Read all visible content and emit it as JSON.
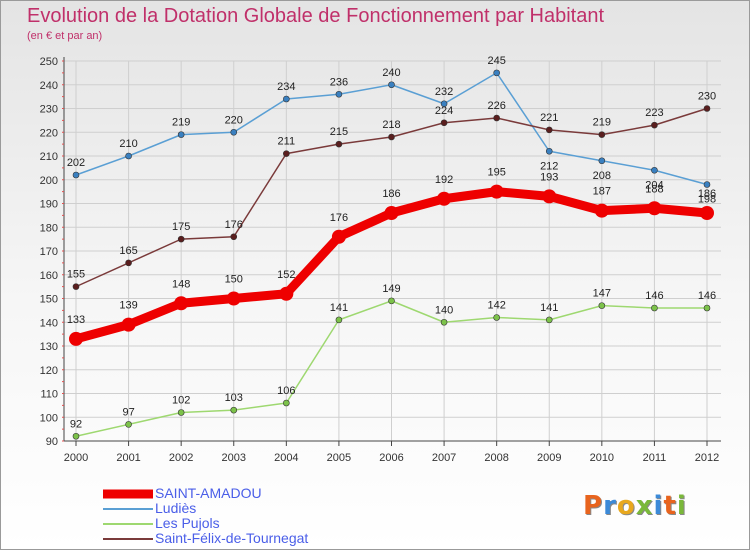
{
  "header": {
    "title": "Evolution de la Dotation Globale de Fonctionnement par Habitant",
    "subtitle": "(en € et par an)"
  },
  "chart_data": {
    "type": "line",
    "title": "Evolution de la Dotation Globale de Fonctionnement par Habitant",
    "subtitle": "(en € et par an)",
    "xlabel": "",
    "ylabel": "",
    "x": [
      "2000",
      "2001",
      "2002",
      "2003",
      "2004",
      "2005",
      "2006",
      "2007",
      "2008",
      "2009",
      "2010",
      "2011",
      "2012"
    ],
    "ylim": [
      90,
      250
    ],
    "yticks": [
      90,
      100,
      110,
      120,
      130,
      140,
      150,
      160,
      170,
      180,
      190,
      200,
      210,
      220,
      230,
      240,
      250
    ],
    "grid": true,
    "legend_position": "bottom-left",
    "series": [
      {
        "name": "Ludiès",
        "color": "#5a9fd4",
        "marker": "#3a80c0",
        "values": [
          202,
          210,
          219,
          220,
          234,
          236,
          240,
          232,
          245,
          212,
          208,
          204,
          198
        ]
      },
      {
        "name": "Saint-Félix-de-Tournegat",
        "color": "#7a3a3a",
        "marker": "#5a1e1e",
        "values": [
          155,
          165,
          175,
          176,
          211,
          215,
          218,
          224,
          226,
          221,
          219,
          223,
          230
        ]
      },
      {
        "name": "Les Pujols",
        "color": "#9ed870",
        "marker": "#7cc24a",
        "values": [
          92,
          97,
          102,
          103,
          106,
          141,
          149,
          140,
          142,
          141,
          147,
          146,
          146
        ]
      },
      {
        "name": "SAINT-AMADOU",
        "color": "#ee0000",
        "marker": "#ee0000",
        "values": [
          133,
          139,
          148,
          150,
          152,
          176,
          186,
          192,
          195,
          193,
          187,
          188,
          186
        ]
      }
    ]
  },
  "legend": {
    "items": [
      {
        "label": "SAINT-AMADOU",
        "color": "#ee0000"
      },
      {
        "label": "Ludiès",
        "color": "#5a9fd4"
      },
      {
        "label": "Les Pujols",
        "color": "#9ed870"
      },
      {
        "label": "Saint-Félix-de-Tournegat",
        "color": "#7a3a3a"
      }
    ]
  },
  "logo": {
    "letters": [
      "P",
      "r",
      "o",
      "x",
      "i",
      "t",
      "i"
    ],
    "colors": [
      "#e8641e",
      "#3c8ad8",
      "#e8a81e",
      "#7ab83a",
      "#3c8ad8",
      "#e8641e",
      "#7ab83a"
    ]
  }
}
